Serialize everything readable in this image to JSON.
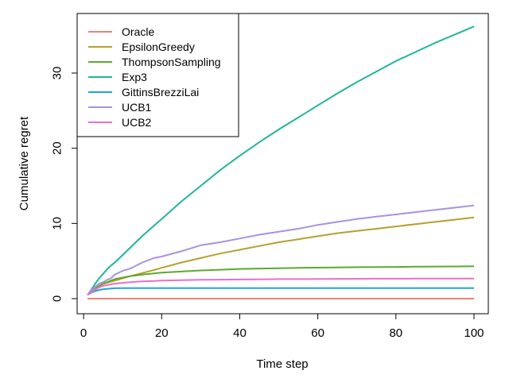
{
  "chart_data": {
    "type": "line",
    "xlabel": "Time step",
    "ylabel": "Cumulative regret",
    "xlim": [
      0,
      100
    ],
    "ylim": [
      0,
      37
    ],
    "xticks": [
      0,
      20,
      40,
      60,
      80,
      100
    ],
    "yticks": [
      0,
      10,
      20,
      30
    ],
    "xtick_labels": [
      "0",
      "20",
      "40",
      "60",
      "80",
      "100"
    ],
    "ytick_labels": [
      "0",
      "10",
      "20",
      "30"
    ],
    "grid": false,
    "legend_position": "top-left",
    "x": [
      1,
      2,
      3,
      4,
      5,
      6,
      7,
      8,
      10,
      12,
      15,
      18,
      20,
      25,
      30,
      35,
      40,
      45,
      50,
      55,
      60,
      65,
      70,
      75,
      80,
      85,
      90,
      95,
      100
    ],
    "series": [
      {
        "name": "Oracle",
        "color": "#E7837B",
        "values": [
          0,
          0,
          0,
          0,
          0,
          0,
          0,
          0,
          0,
          0,
          0,
          0,
          0,
          0,
          0,
          0,
          0,
          0,
          0,
          0,
          0,
          0,
          0,
          0,
          0,
          0,
          0,
          0,
          0
        ]
      },
      {
        "name": "EpsilonGreedy",
        "color": "#B79F2E",
        "values": [
          0.5,
          1.0,
          1.4,
          1.7,
          1.95,
          2.1,
          2.25,
          2.4,
          2.7,
          3.0,
          3.4,
          3.8,
          4.1,
          4.8,
          5.4,
          6.0,
          6.5,
          7.0,
          7.5,
          7.9,
          8.3,
          8.7,
          9.0,
          9.3,
          9.6,
          9.9,
          10.2,
          10.5,
          10.8
        ]
      },
      {
        "name": "ThompsonSampling",
        "color": "#5BAA2D",
        "values": [
          0.5,
          1.0,
          1.4,
          1.7,
          2.0,
          2.2,
          2.4,
          2.6,
          2.8,
          3.0,
          3.2,
          3.35,
          3.45,
          3.6,
          3.75,
          3.85,
          3.95,
          4.0,
          4.05,
          4.1,
          4.12,
          4.15,
          4.18,
          4.2,
          4.22,
          4.25,
          4.27,
          4.28,
          4.3
        ]
      },
      {
        "name": "Exp3",
        "color": "#20B59B",
        "values": [
          0.5,
          1.2,
          2.0,
          2.7,
          3.3,
          3.9,
          4.4,
          4.8,
          5.8,
          6.8,
          8.3,
          9.7,
          10.6,
          12.9,
          15.0,
          17.1,
          19.0,
          20.8,
          22.5,
          24.1,
          25.7,
          27.3,
          28.8,
          30.2,
          31.6,
          32.8,
          34.0,
          35.1,
          36.2
        ]
      },
      {
        "name": "GittinsBrezziLai",
        "color": "#1EA5D8",
        "values": [
          0.5,
          0.8,
          1.0,
          1.15,
          1.25,
          1.3,
          1.35,
          1.38,
          1.4,
          1.4,
          1.4,
          1.4,
          1.4,
          1.4,
          1.4,
          1.4,
          1.4,
          1.4,
          1.4,
          1.4,
          1.4,
          1.4,
          1.4,
          1.4,
          1.4,
          1.4,
          1.4,
          1.4,
          1.4
        ]
      },
      {
        "name": "UCB1",
        "color": "#A893DE",
        "values": [
          0.5,
          1.1,
          1.6,
          2.0,
          2.2,
          2.5,
          2.7,
          3.2,
          3.7,
          4.0,
          4.8,
          5.4,
          5.6,
          6.3,
          7.1,
          7.5,
          8.0,
          8.5,
          8.9,
          9.3,
          9.8,
          10.2,
          10.6,
          10.9,
          11.2,
          11.5,
          11.8,
          12.1,
          12.4
        ]
      },
      {
        "name": "UCB2",
        "color": "#EA6FCB",
        "values": [
          0.5,
          0.9,
          1.2,
          1.5,
          1.7,
          1.8,
          1.9,
          2.0,
          2.1,
          2.2,
          2.3,
          2.35,
          2.4,
          2.45,
          2.5,
          2.52,
          2.55,
          2.57,
          2.6,
          2.6,
          2.62,
          2.63,
          2.64,
          2.65,
          2.65,
          2.66,
          2.66,
          2.67,
          2.67
        ]
      }
    ]
  }
}
